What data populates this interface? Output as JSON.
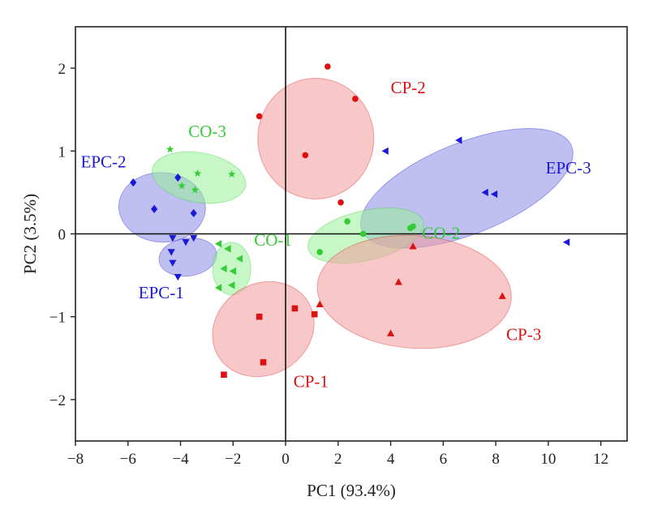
{
  "chart_data": {
    "type": "scatter",
    "title": "",
    "xlabel": "PC1 (93.4%)",
    "ylabel": "PC2 (3.5%)",
    "xlim": [
      -8,
      13
    ],
    "ylim": [
      -2.5,
      2.5
    ],
    "xticks": [
      -8,
      -6,
      -4,
      -2,
      0,
      2,
      4,
      6,
      8,
      10,
      12
    ],
    "yticks": [
      -2,
      -1,
      0,
      1,
      2
    ],
    "grid": false,
    "reference_lines": {
      "x": 0,
      "y": 0
    },
    "colors": {
      "blue": "#1a1ad6",
      "green": "#33cc33",
      "red": "#dd1111",
      "blue_fill": "#8a8ae8",
      "green_fill": "#99ee99",
      "red_fill": "#f29a9a"
    },
    "series": [
      {
        "name": "EPC-1",
        "color": "blue",
        "marker": "triangle-down",
        "label": {
          "text": "EPC-1",
          "x": -5.6,
          "y": -0.78
        },
        "ellipse": {
          "cx": -3.72,
          "cy": -0.28,
          "rx": 0.72,
          "ry": 0.35,
          "angle_deg": -82
        },
        "points": [
          [
            -4.3,
            -0.05
          ],
          [
            -4.35,
            -0.22
          ],
          [
            -4.3,
            -0.35
          ],
          [
            -4.1,
            -0.52
          ],
          [
            -3.8,
            -0.1
          ],
          [
            -3.5,
            -0.05
          ]
        ]
      },
      {
        "name": "EPC-2",
        "color": "blue",
        "marker": "diamond",
        "label": {
          "text": "EPC-2",
          "x": -7.8,
          "y": 0.8
        },
        "ellipse": {
          "cx": -4.7,
          "cy": 0.32,
          "rx": 1.65,
          "ry": 0.42,
          "angle_deg": -3
        },
        "points": [
          [
            -5.8,
            0.62
          ],
          [
            -5.0,
            0.3
          ],
          [
            -4.1,
            0.68
          ],
          [
            -3.5,
            0.25
          ]
        ]
      },
      {
        "name": "EPC-3",
        "color": "blue",
        "marker": "triangle-left",
        "label": {
          "text": "EPC-3",
          "x": 9.9,
          "y": 0.73
        },
        "ellipse": {
          "cx": 6.9,
          "cy": 0.55,
          "rx": 4.3,
          "ry": 0.55,
          "angle_deg": 22
        },
        "points": [
          [
            3.8,
            1.0
          ],
          [
            6.6,
            1.13
          ],
          [
            7.6,
            0.5
          ],
          [
            7.95,
            0.48
          ],
          [
            10.7,
            -0.1
          ]
        ]
      },
      {
        "name": "CO-1",
        "color": "green",
        "marker": "triangle-left",
        "label": {
          "text": "CO-1",
          "x": -1.2,
          "y": -0.14
        },
        "ellipse": {
          "cx": -2.05,
          "cy": -0.42,
          "rx": 1.0,
          "ry": 0.23,
          "angle_deg": -90
        },
        "points": [
          [
            -2.55,
            -0.12
          ],
          [
            -2.2,
            -0.18
          ],
          [
            -2.35,
            -0.42
          ],
          [
            -2.0,
            -0.45
          ],
          [
            -2.55,
            -0.65
          ],
          [
            -2.05,
            -0.62
          ],
          [
            -1.75,
            -0.3
          ]
        ]
      },
      {
        "name": "CO-2",
        "color": "green",
        "marker": "circle",
        "label": {
          "text": "CO-2",
          "x": 5.2,
          "y": -0.06
        },
        "ellipse": {
          "cx": 3.05,
          "cy": -0.02,
          "rx": 2.25,
          "ry": 0.3,
          "angle_deg": 13
        },
        "points": [
          [
            1.3,
            -0.22
          ],
          [
            2.35,
            0.15
          ],
          [
            2.95,
            0.0
          ],
          [
            4.75,
            0.07
          ],
          [
            4.85,
            0.09
          ]
        ]
      },
      {
        "name": "CO-3",
        "color": "green",
        "marker": "star",
        "label": {
          "text": "CO-3",
          "x": -3.7,
          "y": 1.17
        },
        "ellipse": {
          "cx": -3.3,
          "cy": 0.68,
          "rx": 1.8,
          "ry": 0.3,
          "angle_deg": -10
        },
        "points": [
          [
            -4.4,
            1.02
          ],
          [
            -3.95,
            0.58
          ],
          [
            -3.35,
            0.73
          ],
          [
            -3.45,
            0.53
          ],
          [
            -2.05,
            0.72
          ]
        ]
      },
      {
        "name": "CP-1",
        "color": "red",
        "marker": "square",
        "label": {
          "text": "CP-1",
          "x": 0.3,
          "y": -1.85
        },
        "ellipse": {
          "cx": -0.85,
          "cy": -1.15,
          "rx": 2.0,
          "ry": 0.55,
          "angle_deg": 31
        },
        "points": [
          [
            -2.35,
            -1.7
          ],
          [
            -0.85,
            -1.55
          ],
          [
            -1.0,
            -1.0
          ],
          [
            0.35,
            -0.9
          ],
          [
            1.1,
            -0.97
          ]
        ]
      },
      {
        "name": "CP-2",
        "color": "red",
        "marker": "circle",
        "label": {
          "text": "CP-2",
          "x": 4.0,
          "y": 1.7
        },
        "ellipse": {
          "cx": 1.15,
          "cy": 1.15,
          "rx": 2.3,
          "ry": 0.7,
          "angle_deg": 90
        },
        "points": [
          [
            1.6,
            2.02
          ],
          [
            2.65,
            1.63
          ],
          [
            -1.0,
            1.42
          ],
          [
            0.75,
            0.95
          ],
          [
            2.1,
            0.38
          ]
        ]
      },
      {
        "name": "CP-3",
        "color": "red",
        "marker": "triangle-up",
        "label": {
          "text": "CP-3",
          "x": 8.4,
          "y": -1.28
        },
        "ellipse": {
          "cx": 4.9,
          "cy": -0.7,
          "rx": 3.7,
          "ry": 0.68,
          "angle_deg": -4
        },
        "points": [
          [
            1.3,
            -0.85
          ],
          [
            4.85,
            -0.15
          ],
          [
            4.3,
            -0.58
          ],
          [
            8.25,
            -0.75
          ],
          [
            4.0,
            -1.2
          ]
        ]
      }
    ]
  }
}
